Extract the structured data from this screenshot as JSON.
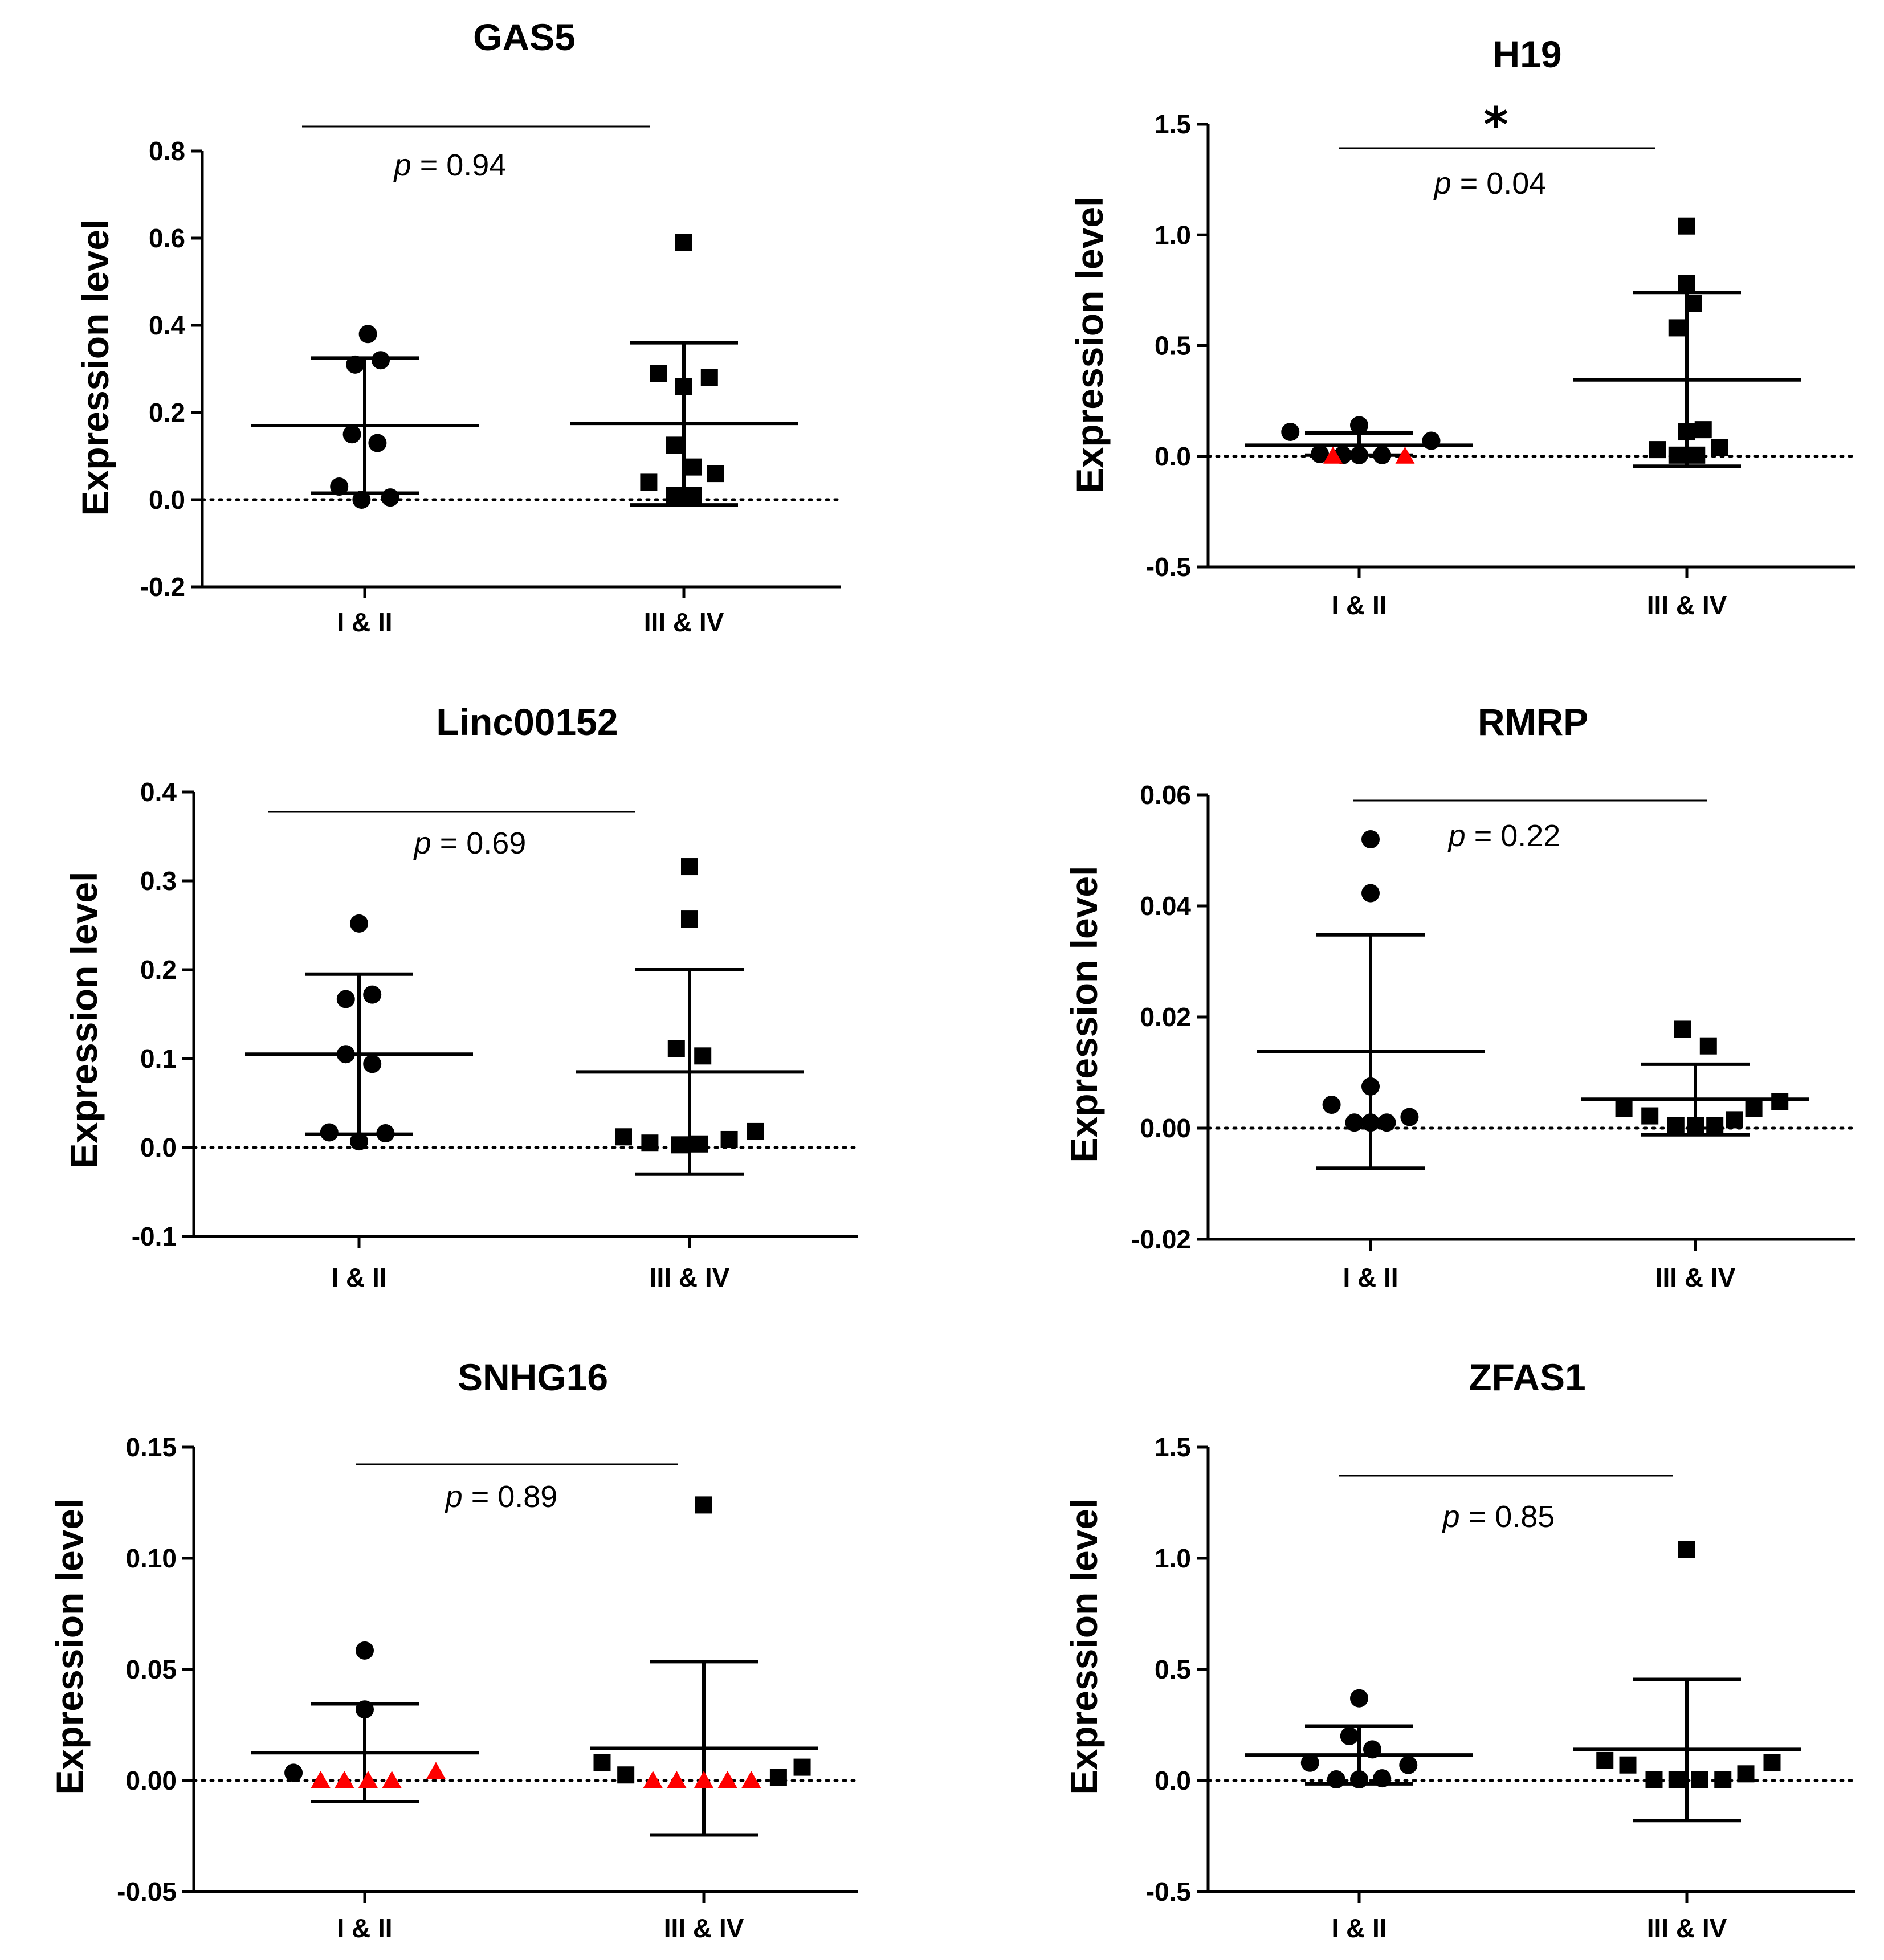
{
  "chart_data": [
    {
      "type": "scatter",
      "title": "GAS5",
      "ylabel": "Expression level",
      "xlabel": "",
      "categories": [
        "I & II",
        "III & IV"
      ],
      "ylim": [
        -0.2,
        0.8
      ],
      "yticks": [
        -0.2,
        0.0,
        0.2,
        0.4,
        0.6,
        0.8
      ],
      "yticklabels": [
        "-0.2",
        "0.0",
        "0.2",
        "0.4",
        "0.6",
        "0.8"
      ],
      "pvalue": {
        "label": "p",
        "text": " = 0.94"
      },
      "significance": "",
      "groups": [
        {
          "name": "I & II",
          "marker": "circle",
          "mean": 0.17,
          "error_low": 0.015,
          "error_high": 0.325,
          "points": [
            {
              "x": 0.01,
              "y": 0.38
            },
            {
              "x": -0.03,
              "y": 0.31
            },
            {
              "x": 0.05,
              "y": 0.32
            },
            {
              "x": -0.04,
              "y": 0.15
            },
            {
              "x": 0.04,
              "y": 0.13
            },
            {
              "x": -0.08,
              "y": 0.03
            },
            {
              "x": -0.01,
              "y": 0.0
            },
            {
              "x": 0.08,
              "y": 0.005
            }
          ],
          "red_points": []
        },
        {
          "name": "III & IV",
          "marker": "square",
          "mean": 0.175,
          "error_low": -0.012,
          "error_high": 0.36,
          "points": [
            {
              "x": 0.0,
              "y": 0.59
            },
            {
              "x": -0.08,
              "y": 0.29
            },
            {
              "x": 0.08,
              "y": 0.28
            },
            {
              "x": 0.0,
              "y": 0.26
            },
            {
              "x": -0.03,
              "y": 0.125
            },
            {
              "x": 0.03,
              "y": 0.075
            },
            {
              "x": 0.1,
              "y": 0.06
            },
            {
              "x": -0.11,
              "y": 0.04
            },
            {
              "x": -0.03,
              "y": 0.01
            },
            {
              "x": 0.03,
              "y": 0.01
            }
          ],
          "red_points": []
        }
      ]
    },
    {
      "type": "scatter",
      "title": "H19",
      "ylabel": "Expression level",
      "xlabel": "",
      "categories": [
        "I & II",
        "III & IV"
      ],
      "ylim": [
        -0.5,
        1.5
      ],
      "yticks": [
        -0.5,
        0.0,
        0.5,
        1.0,
        1.5
      ],
      "yticklabels": [
        "-0.5",
        "0.0",
        "0.5",
        "1.0",
        "1.5"
      ],
      "pvalue": {
        "label": "p",
        "text": " = 0.04"
      },
      "significance": "*",
      "groups": [
        {
          "name": "I & II",
          "marker": "circle",
          "mean": 0.05,
          "error_low": 0.005,
          "error_high": 0.105,
          "points": [
            {
              "x": -0.21,
              "y": 0.11
            },
            {
              "x": 0.0,
              "y": 0.14
            },
            {
              "x": 0.22,
              "y": 0.07
            },
            {
              "x": -0.12,
              "y": 0.01
            },
            {
              "x": 0.0,
              "y": 0.005
            },
            {
              "x": 0.07,
              "y": 0.005
            },
            {
              "x": -0.05,
              "y": 0.005
            }
          ],
          "red_points": [
            {
              "x": -0.08,
              "y": 0.0
            },
            {
              "x": 0.14,
              "y": 0.0
            }
          ]
        },
        {
          "name": "III & IV",
          "marker": "square",
          "mean": 0.345,
          "error_low": -0.045,
          "error_high": 0.74,
          "points": [
            {
              "x": 0.0,
              "y": 1.04
            },
            {
              "x": 0.0,
              "y": 0.78
            },
            {
              "x": 0.02,
              "y": 0.69
            },
            {
              "x": -0.03,
              "y": 0.58
            },
            {
              "x": 0.0,
              "y": 0.11
            },
            {
              "x": 0.05,
              "y": 0.12
            },
            {
              "x": -0.09,
              "y": 0.03
            },
            {
              "x": 0.1,
              "y": 0.04
            },
            {
              "x": -0.03,
              "y": 0.005
            },
            {
              "x": 0.03,
              "y": 0.005
            }
          ],
          "red_points": []
        }
      ]
    },
    {
      "type": "scatter",
      "title": "Linc00152",
      "ylabel": "Expression level",
      "xlabel": "",
      "categories": [
        "I & II",
        "III & IV"
      ],
      "ylim": [
        -0.1,
        0.4
      ],
      "yticks": [
        -0.1,
        0.0,
        0.1,
        0.2,
        0.3,
        0.4
      ],
      "yticklabels": [
        "-0.1",
        "0.0",
        "0.1",
        "0.2",
        "0.3",
        "0.4"
      ],
      "pvalue": {
        "label": "p",
        "text": " = 0.69"
      },
      "significance": "",
      "groups": [
        {
          "name": "I & II",
          "marker": "circle",
          "mean": 0.105,
          "error_low": 0.015,
          "error_high": 0.195,
          "points": [
            {
              "x": 0.0,
              "y": 0.252
            },
            {
              "x": -0.04,
              "y": 0.167
            },
            {
              "x": 0.04,
              "y": 0.172
            },
            {
              "x": -0.04,
              "y": 0.105
            },
            {
              "x": 0.04,
              "y": 0.094
            },
            {
              "x": -0.09,
              "y": 0.017
            },
            {
              "x": 0.08,
              "y": 0.016
            },
            {
              "x": 0.0,
              "y": 0.007
            }
          ],
          "red_points": []
        },
        {
          "name": "III & IV",
          "marker": "square",
          "mean": 0.085,
          "error_low": -0.03,
          "error_high": 0.2,
          "points": [
            {
              "x": 0.0,
              "y": 0.316
            },
            {
              "x": 0.0,
              "y": 0.257
            },
            {
              "x": -0.04,
              "y": 0.111
            },
            {
              "x": 0.04,
              "y": 0.103
            },
            {
              "x": -0.2,
              "y": 0.012
            },
            {
              "x": -0.12,
              "y": 0.005
            },
            {
              "x": -0.03,
              "y": 0.003
            },
            {
              "x": 0.03,
              "y": 0.004
            },
            {
              "x": 0.12,
              "y": 0.009
            },
            {
              "x": 0.2,
              "y": 0.018
            }
          ],
          "red_points": []
        }
      ]
    },
    {
      "type": "scatter",
      "title": "RMRP",
      "ylabel": "Expression level",
      "xlabel": "",
      "categories": [
        "I & II",
        "III & IV"
      ],
      "ylim": [
        -0.02,
        0.06
      ],
      "yticks": [
        -0.02,
        0.0,
        0.02,
        0.04,
        0.06
      ],
      "yticklabels": [
        "-0.02",
        "0.00",
        "0.02",
        "0.04",
        "0.06"
      ],
      "pvalue": {
        "label": "p",
        "text": " = 0.22"
      },
      "significance": "",
      "groups": [
        {
          "name": "I & II",
          "marker": "circle",
          "mean": 0.0138,
          "error_low": -0.0072,
          "error_high": 0.0348,
          "points": [
            {
              "x": 0.0,
              "y": 0.052
            },
            {
              "x": 0.0,
              "y": 0.0423
            },
            {
              "x": 0.0,
              "y": 0.0075
            },
            {
              "x": -0.12,
              "y": 0.0042
            },
            {
              "x": 0.12,
              "y": 0.002
            },
            {
              "x": -0.05,
              "y": 0.001
            },
            {
              "x": 0.05,
              "y": 0.001
            },
            {
              "x": 0.0,
              "y": 0.001
            }
          ],
          "red_points": []
        },
        {
          "name": "III & IV",
          "marker": "square",
          "mean": 0.0052,
          "error_low": -0.0012,
          "error_high": 0.0115,
          "points": [
            {
              "x": -0.04,
              "y": 0.0178
            },
            {
              "x": 0.04,
              "y": 0.0148
            },
            {
              "x": -0.22,
              "y": 0.0035
            },
            {
              "x": -0.14,
              "y": 0.0022
            },
            {
              "x": -0.06,
              "y": 0.0005
            },
            {
              "x": 0.0,
              "y": 0.0005
            },
            {
              "x": 0.06,
              "y": 0.0005
            },
            {
              "x": 0.12,
              "y": 0.0015
            },
            {
              "x": 0.18,
              "y": 0.0035
            },
            {
              "x": 0.26,
              "y": 0.0048
            }
          ],
          "red_points": []
        }
      ]
    },
    {
      "type": "scatter",
      "title": "SNHG16",
      "ylabel": "Expression level",
      "xlabel": "",
      "categories": [
        "I & II",
        "III & IV"
      ],
      "ylim": [
        -0.05,
        0.15
      ],
      "yticks": [
        -0.05,
        0.0,
        0.05,
        0.1,
        0.15
      ],
      "yticklabels": [
        "-0.05",
        "0.00",
        "0.05",
        "0.10",
        "0.15"
      ],
      "pvalue": {
        "label": "p",
        "text": " = 0.89"
      },
      "significance": "",
      "groups": [
        {
          "name": "I & II",
          "marker": "circle",
          "mean": 0.0125,
          "error_low": -0.0095,
          "error_high": 0.0345,
          "points": [
            {
              "x": 0.0,
              "y": 0.0585
            },
            {
              "x": 0.0,
              "y": 0.032
            },
            {
              "x": -0.21,
              "y": 0.0035
            }
          ],
          "red_points": [
            {
              "x": -0.13,
              "y": 0.0
            },
            {
              "x": -0.06,
              "y": 0.0
            },
            {
              "x": 0.01,
              "y": 0.0
            },
            {
              "x": 0.08,
              "y": 0.0
            },
            {
              "x": 0.21,
              "y": 0.004
            }
          ]
        },
        {
          "name": "III & IV",
          "marker": "square",
          "mean": 0.0145,
          "error_low": -0.0245,
          "error_high": 0.0535,
          "points": [
            {
              "x": 0.0,
              "y": 0.124
            },
            {
              "x": -0.3,
              "y": 0.008
            },
            {
              "x": -0.23,
              "y": 0.0025
            },
            {
              "x": 0.22,
              "y": 0.0015
            },
            {
              "x": 0.29,
              "y": 0.006
            }
          ],
          "red_points": [
            {
              "x": -0.15,
              "y": 0.0
            },
            {
              "x": -0.08,
              "y": 0.0
            },
            {
              "x": 0.0,
              "y": 0.0
            },
            {
              "x": 0.07,
              "y": 0.0
            },
            {
              "x": 0.14,
              "y": 0.0
            }
          ]
        }
      ]
    },
    {
      "type": "scatter",
      "title": "ZFAS1",
      "ylabel": "Expression level",
      "xlabel": "",
      "categories": [
        "I & II",
        "III & IV"
      ],
      "ylim": [
        -0.5,
        1.5
      ],
      "yticks": [
        -0.5,
        0.0,
        0.5,
        1.0,
        1.5
      ],
      "yticklabels": [
        "-0.5",
        "0.0",
        "0.5",
        "1.0",
        "1.5"
      ],
      "pvalue": {
        "label": "p",
        "text": " = 0.85"
      },
      "significance": "",
      "groups": [
        {
          "name": "I & II",
          "marker": "circle",
          "mean": 0.115,
          "error_low": -0.015,
          "error_high": 0.245,
          "points": [
            {
              "x": 0.0,
              "y": 0.37
            },
            {
              "x": -0.03,
              "y": 0.2
            },
            {
              "x": 0.04,
              "y": 0.14
            },
            {
              "x": -0.15,
              "y": 0.08
            },
            {
              "x": 0.15,
              "y": 0.07
            },
            {
              "x": -0.07,
              "y": 0.005
            },
            {
              "x": 0.07,
              "y": 0.01
            },
            {
              "x": 0.0,
              "y": 0.005
            }
          ],
          "red_points": []
        },
        {
          "name": "III & IV",
          "marker": "square",
          "mean": 0.14,
          "error_low": -0.18,
          "error_high": 0.455,
          "points": [
            {
              "x": 0.0,
              "y": 1.04
            },
            {
              "x": -0.25,
              "y": 0.09
            },
            {
              "x": -0.18,
              "y": 0.07
            },
            {
              "x": -0.1,
              "y": 0.005
            },
            {
              "x": -0.03,
              "y": 0.005
            },
            {
              "x": 0.04,
              "y": 0.005
            },
            {
              "x": 0.11,
              "y": 0.005
            },
            {
              "x": 0.18,
              "y": 0.03
            },
            {
              "x": 0.26,
              "y": 0.08
            }
          ],
          "red_points": []
        }
      ]
    }
  ]
}
